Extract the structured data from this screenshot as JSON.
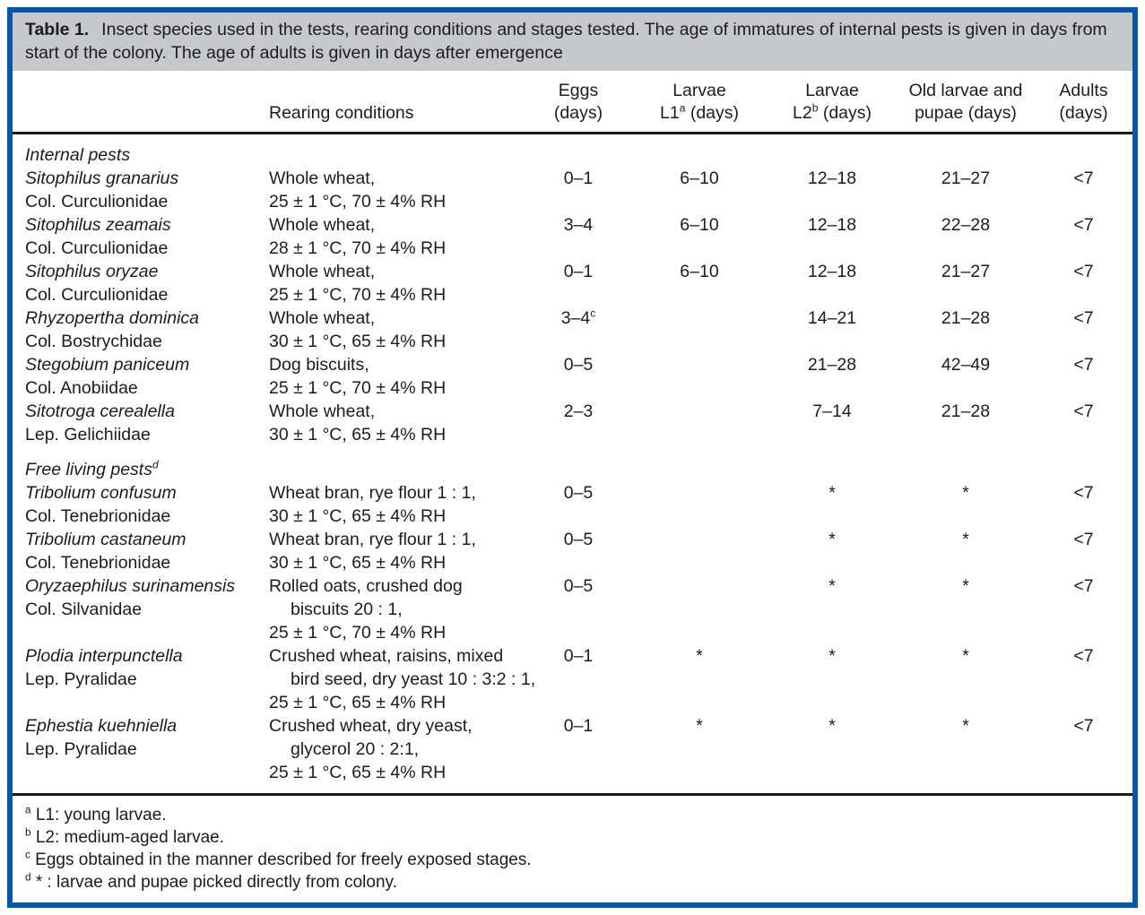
{
  "colors": {
    "frame_blue": "#0b55a5",
    "caption_bg": "#c7c8ca",
    "rule": "#1a1a1d",
    "text": "#1c1c1f"
  },
  "caption": {
    "label": "Table 1.",
    "text": "Insect species used in the tests, rearing conditions and stages tested. The age of immatures of internal pests is given in days from start of the colony. The age of adults is given in days after emergence"
  },
  "header": {
    "rearing": "Rearing conditions",
    "value_columns": [
      {
        "line1": "Eggs",
        "line2_pre": "",
        "sup": "",
        "line2_post": "(days)"
      },
      {
        "line1": "Larvae",
        "line2_pre": "L1",
        "sup": "a",
        "line2_post": " (days)"
      },
      {
        "line1": "Larvae",
        "line2_pre": "L2",
        "sup": "b",
        "line2_post": " (days)"
      },
      {
        "line1": "Old larvae and",
        "line2_pre": "",
        "sup": "",
        "line2_post": "pupae (days)"
      },
      {
        "line1": "Adults",
        "line2_pre": "",
        "sup": "",
        "line2_post": "(days)"
      }
    ]
  },
  "sections": [
    {
      "title": "Internal pests",
      "title_sup": "",
      "rows": [
        {
          "species": "Sitophilus granarius",
          "family": "Col. Curculionidae",
          "rearing": [
            {
              "t": "Whole wheat,",
              "indent": false
            },
            {
              "t": "25 ± 1 °C, 70 ± 4% RH",
              "indent": false
            }
          ],
          "values": [
            {
              "t": "0–1",
              "sup": ""
            },
            {
              "t": "6–10",
              "sup": ""
            },
            {
              "t": "12–18",
              "sup": ""
            },
            {
              "t": "21–27",
              "sup": ""
            },
            {
              "t": "<7",
              "sup": ""
            }
          ]
        },
        {
          "species": "Sitophilus zeamais",
          "family": "Col. Curculionidae",
          "rearing": [
            {
              "t": "Whole wheat,",
              "indent": false
            },
            {
              "t": "28 ± 1 °C, 70 ± 4% RH",
              "indent": false
            }
          ],
          "values": [
            {
              "t": "3–4",
              "sup": ""
            },
            {
              "t": "6–10",
              "sup": ""
            },
            {
              "t": "12–18",
              "sup": ""
            },
            {
              "t": "22–28",
              "sup": ""
            },
            {
              "t": "<7",
              "sup": ""
            }
          ]
        },
        {
          "species": "Sitophilus oryzae",
          "family": "Col. Curculionidae",
          "rearing": [
            {
              "t": "Whole wheat,",
              "indent": false
            },
            {
              "t": "25 ± 1 °C, 70 ± 4% RH",
              "indent": false
            }
          ],
          "values": [
            {
              "t": "0–1",
              "sup": ""
            },
            {
              "t": "6–10",
              "sup": ""
            },
            {
              "t": "12–18",
              "sup": ""
            },
            {
              "t": "21–27",
              "sup": ""
            },
            {
              "t": "<7",
              "sup": ""
            }
          ]
        },
        {
          "species": "Rhyzopertha dominica",
          "family": "Col. Bostrychidae",
          "rearing": [
            {
              "t": "Whole wheat,",
              "indent": false
            },
            {
              "t": "30 ± 1 °C, 65 ± 4% RH",
              "indent": false
            }
          ],
          "values": [
            {
              "t": "3–4",
              "sup": "c"
            },
            {
              "t": "",
              "sup": ""
            },
            {
              "t": "14–21",
              "sup": ""
            },
            {
              "t": "21–28",
              "sup": ""
            },
            {
              "t": "<7",
              "sup": ""
            }
          ]
        },
        {
          "species": "Stegobium paniceum",
          "family": "Col. Anobiidae",
          "rearing": [
            {
              "t": "Dog biscuits,",
              "indent": false
            },
            {
              "t": "25 ± 1 °C, 70 ± 4% RH",
              "indent": false
            }
          ],
          "values": [
            {
              "t": "0–5",
              "sup": ""
            },
            {
              "t": "",
              "sup": ""
            },
            {
              "t": "21–28",
              "sup": ""
            },
            {
              "t": "42–49",
              "sup": ""
            },
            {
              "t": "<7",
              "sup": ""
            }
          ]
        },
        {
          "species": "Sitotroga cerealella",
          "family": "Lep. Gelichiidae",
          "rearing": [
            {
              "t": "Whole wheat,",
              "indent": false
            },
            {
              "t": "30 ± 1 °C, 65 ± 4% RH",
              "indent": false
            }
          ],
          "values": [
            {
              "t": "2–3",
              "sup": ""
            },
            {
              "t": "",
              "sup": ""
            },
            {
              "t": "7–14",
              "sup": ""
            },
            {
              "t": "21–28",
              "sup": ""
            },
            {
              "t": "<7",
              "sup": ""
            }
          ]
        }
      ]
    },
    {
      "title": "Free living pests",
      "title_sup": "d",
      "rows": [
        {
          "species": "Tribolium confusum",
          "family": "Col. Tenebrionidae",
          "rearing": [
            {
              "t": "Wheat bran, rye flour 1 : 1,",
              "indent": false
            },
            {
              "t": "30 ± 1 °C, 65 ± 4% RH",
              "indent": false
            }
          ],
          "values": [
            {
              "t": "0–5",
              "sup": ""
            },
            {
              "t": "",
              "sup": ""
            },
            {
              "t": "*",
              "sup": ""
            },
            {
              "t": "*",
              "sup": ""
            },
            {
              "t": "<7",
              "sup": ""
            }
          ]
        },
        {
          "species": "Tribolium castaneum",
          "family": "Col. Tenebrionidae",
          "rearing": [
            {
              "t": "Wheat bran, rye flour 1 : 1,",
              "indent": false
            },
            {
              "t": "30 ± 1 °C, 65 ± 4% RH",
              "indent": false
            }
          ],
          "values": [
            {
              "t": "0–5",
              "sup": ""
            },
            {
              "t": "",
              "sup": ""
            },
            {
              "t": "*",
              "sup": ""
            },
            {
              "t": "*",
              "sup": ""
            },
            {
              "t": "<7",
              "sup": ""
            }
          ]
        },
        {
          "species": "Oryzaephilus surinamensis",
          "family": "Col. Silvanidae",
          "rearing": [
            {
              "t": "Rolled oats, crushed dog",
              "indent": false
            },
            {
              "t": "biscuits 20 : 1,",
              "indent": true
            },
            {
              "t": "25 ± 1 °C, 70 ± 4% RH",
              "indent": false
            }
          ],
          "values": [
            {
              "t": "0–5",
              "sup": ""
            },
            {
              "t": "",
              "sup": ""
            },
            {
              "t": "*",
              "sup": ""
            },
            {
              "t": "*",
              "sup": ""
            },
            {
              "t": "<7",
              "sup": ""
            }
          ]
        },
        {
          "species": "Plodia interpunctella",
          "family": "Lep. Pyralidae",
          "rearing": [
            {
              "t": "Crushed wheat, raisins, mixed",
              "indent": false
            },
            {
              "t": "bird seed, dry yeast 10 : 3:2 : 1,",
              "indent": true
            },
            {
              "t": "25 ± 1 °C, 65 ± 4% RH",
              "indent": false
            }
          ],
          "values": [
            {
              "t": "0–1",
              "sup": ""
            },
            {
              "t": "*",
              "sup": ""
            },
            {
              "t": "*",
              "sup": ""
            },
            {
              "t": "*",
              "sup": ""
            },
            {
              "t": "<7",
              "sup": ""
            }
          ]
        },
        {
          "species": "Ephestia kuehniella",
          "family": "Lep. Pyralidae",
          "rearing": [
            {
              "t": "Crushed wheat, dry yeast,",
              "indent": false
            },
            {
              "t": "glycerol 20 : 2:1,",
              "indent": true
            },
            {
              "t": "25 ± 1 °C, 65 ± 4% RH",
              "indent": false
            }
          ],
          "values": [
            {
              "t": "0–1",
              "sup": ""
            },
            {
              "t": "*",
              "sup": ""
            },
            {
              "t": "*",
              "sup": ""
            },
            {
              "t": "*",
              "sup": ""
            },
            {
              "t": "<7",
              "sup": ""
            }
          ]
        }
      ]
    }
  ],
  "footnotes": [
    {
      "sup": "a",
      "text": "L1: young larvae."
    },
    {
      "sup": "b",
      "text": "L2: medium-aged larvae."
    },
    {
      "sup": "c",
      "text": "Eggs obtained in the manner described for freely exposed stages."
    },
    {
      "sup": "d",
      "text": "* : larvae and pupae picked directly from colony."
    }
  ]
}
